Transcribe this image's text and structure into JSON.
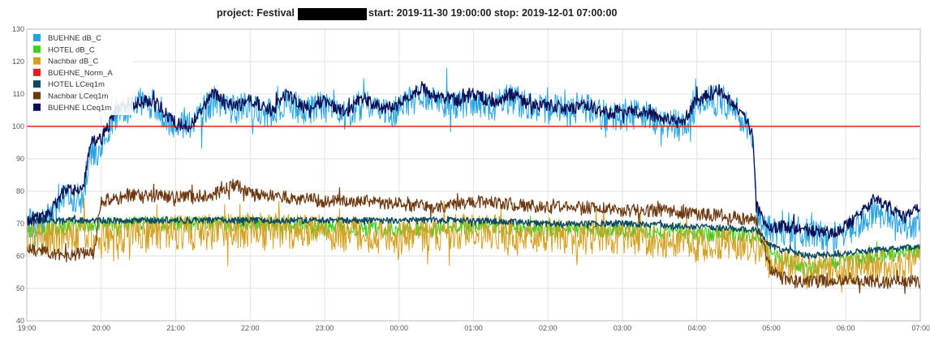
{
  "title": {
    "prefix": "project: Festival",
    "suffix": "start: 2019-11-30 19:00:00 stop: 2019-12-01 07:00:00"
  },
  "chart_data": {
    "type": "line",
    "title": "project: Festival [redacted] start: 2019-11-30 19:00:00 stop: 2019-12-01 07:00:00",
    "xlabel": "",
    "ylabel": "",
    "xlim": [
      0,
      12
    ],
    "ylim": [
      40,
      130
    ],
    "grid": true,
    "legend": "top-left",
    "x_ticks": [
      {
        "v": 0,
        "label": "19:00"
      },
      {
        "v": 1,
        "label": "20:00"
      },
      {
        "v": 2,
        "label": "21:00"
      },
      {
        "v": 3,
        "label": "22:00"
      },
      {
        "v": 4,
        "label": "23:00"
      },
      {
        "v": 5,
        "label": "00:00"
      },
      {
        "v": 6,
        "label": "01:00"
      },
      {
        "v": 7,
        "label": "02:00"
      },
      {
        "v": 8,
        "label": "03:00"
      },
      {
        "v": 9,
        "label": "04:00"
      },
      {
        "v": 10,
        "label": "05:00"
      },
      {
        "v": 11,
        "label": "06:00"
      },
      {
        "v": 12,
        "label": "07:00"
      }
    ],
    "y_ticks": [
      40,
      50,
      60,
      70,
      80,
      90,
      100,
      110,
      120,
      130
    ],
    "series": [
      {
        "name": "BUEHNE dB_C",
        "color": "#29a3e0",
        "width": 1,
        "noise": 6,
        "x": [
          0,
          0.3,
          0.5,
          0.75,
          0.85,
          1,
          1.05,
          1.2,
          1.4,
          1.7,
          2,
          2.2,
          2.5,
          2.8,
          3,
          3.3,
          3.5,
          3.7,
          4,
          4.3,
          4.5,
          4.8,
          5,
          5.3,
          5.5,
          5.8,
          6,
          6.3,
          6.5,
          6.8,
          7,
          7.3,
          7.5,
          7.8,
          8,
          8.3,
          8.5,
          8.8,
          9,
          9.3,
          9.6,
          9.75,
          9.8,
          9.9,
          10,
          10.2,
          10.5,
          10.8,
          11,
          11.2,
          11.4,
          11.6,
          11.8,
          12
        ],
        "y": [
          70,
          72,
          78,
          78,
          92,
          92,
          96,
          104,
          106,
          107,
          100,
          100,
          108,
          105,
          106,
          104,
          108,
          105,
          106,
          103,
          107,
          104,
          105,
          110,
          108,
          107,
          108,
          106,
          109,
          105,
          106,
          104,
          106,
          103,
          104,
          103,
          102,
          100,
          106,
          109,
          103,
          95,
          75,
          70,
          67,
          68,
          67,
          66,
          67,
          70,
          74,
          72,
          70,
          70
        ]
      },
      {
        "name": "HOTEL dB_C",
        "color": "#3dcf1e",
        "width": 1,
        "noise": 3,
        "x": [
          0,
          1,
          2,
          3,
          4,
          5,
          6,
          7,
          8,
          9,
          9.8,
          10,
          10.5,
          11,
          11.5,
          12
        ],
        "y": [
          68,
          70,
          70,
          70,
          69,
          68,
          69,
          68,
          68,
          67,
          66,
          60,
          56,
          58,
          60,
          62
        ]
      },
      {
        "name": "Nachbar dB_C",
        "color": "#d4a020",
        "width": 1,
        "noise": 7,
        "x": [
          0,
          1,
          2,
          3,
          4,
          5,
          6,
          7,
          8,
          9,
          9.8,
          10,
          10.5,
          11,
          11.5,
          12
        ],
        "y": [
          66,
          66,
          67,
          68,
          67,
          66,
          68,
          66,
          66,
          64,
          63,
          58,
          55,
          56,
          57,
          58
        ]
      },
      {
        "name": "BUEHNE_Norm_A",
        "color": "#e81e1e",
        "width": 1.5,
        "noise": 0,
        "x": [
          0,
          12
        ],
        "y": [
          100,
          100
        ]
      },
      {
        "name": "HOTEL LCeq1m",
        "color": "#0b4a60",
        "width": 1.4,
        "noise": 1.2,
        "x": [
          0,
          1,
          2,
          3,
          4,
          5,
          6,
          7,
          8,
          9,
          9.8,
          10,
          10.5,
          11,
          11.5,
          12
        ],
        "y": [
          71,
          71,
          71,
          71,
          71,
          71,
          71,
          70,
          70,
          69,
          68,
          63,
          60,
          61,
          62,
          63
        ]
      },
      {
        "name": "Nachbar LCeq1m",
        "color": "#6b3810",
        "width": 1.2,
        "noise": 2.5,
        "x": [
          0,
          0.5,
          0.9,
          1.0,
          1.5,
          2,
          2.5,
          2.8,
          3,
          3.5,
          4,
          4.5,
          5,
          5.5,
          6,
          6.5,
          7,
          7.5,
          8,
          8.5,
          9,
          9.5,
          9.8,
          10,
          10.3,
          10.6,
          11,
          11.5,
          12
        ],
        "y": [
          62,
          60,
          61,
          77,
          79,
          78,
          79,
          82,
          79,
          78,
          77,
          77,
          76,
          75,
          77,
          76,
          75,
          75,
          74,
          74,
          73,
          72,
          71,
          55,
          52,
          52,
          53,
          52,
          52
        ]
      },
      {
        "name": "BUEHNE LCeq1m",
        "color": "#0a0f55",
        "width": 1.3,
        "noise": 2.5,
        "x": [
          0,
          0.3,
          0.5,
          0.75,
          0.85,
          1,
          1.05,
          1.2,
          1.4,
          1.7,
          2,
          2.2,
          2.5,
          2.8,
          3,
          3.3,
          3.5,
          3.7,
          4,
          4.3,
          4.5,
          4.8,
          5,
          5.3,
          5.5,
          5.8,
          6,
          6.3,
          6.5,
          6.8,
          7,
          7.3,
          7.5,
          7.8,
          8,
          8.3,
          8.5,
          8.8,
          9,
          9.3,
          9.6,
          9.75,
          9.8,
          9.9,
          10,
          10.2,
          10.5,
          10.8,
          11,
          11.2,
          11.4,
          11.6,
          11.8,
          12
        ],
        "y": [
          71,
          73,
          80,
          80,
          95,
          96,
          98,
          105,
          107,
          108,
          101,
          100,
          110,
          106,
          108,
          105,
          110,
          106,
          108,
          104,
          109,
          105,
          107,
          112,
          109,
          108,
          110,
          107,
          110,
          106,
          107,
          105,
          107,
          104,
          105,
          104,
          103,
          101,
          108,
          111,
          104,
          97,
          76,
          71,
          69,
          69,
          68,
          67,
          69,
          73,
          78,
          75,
          72,
          75
        ]
      }
    ]
  }
}
